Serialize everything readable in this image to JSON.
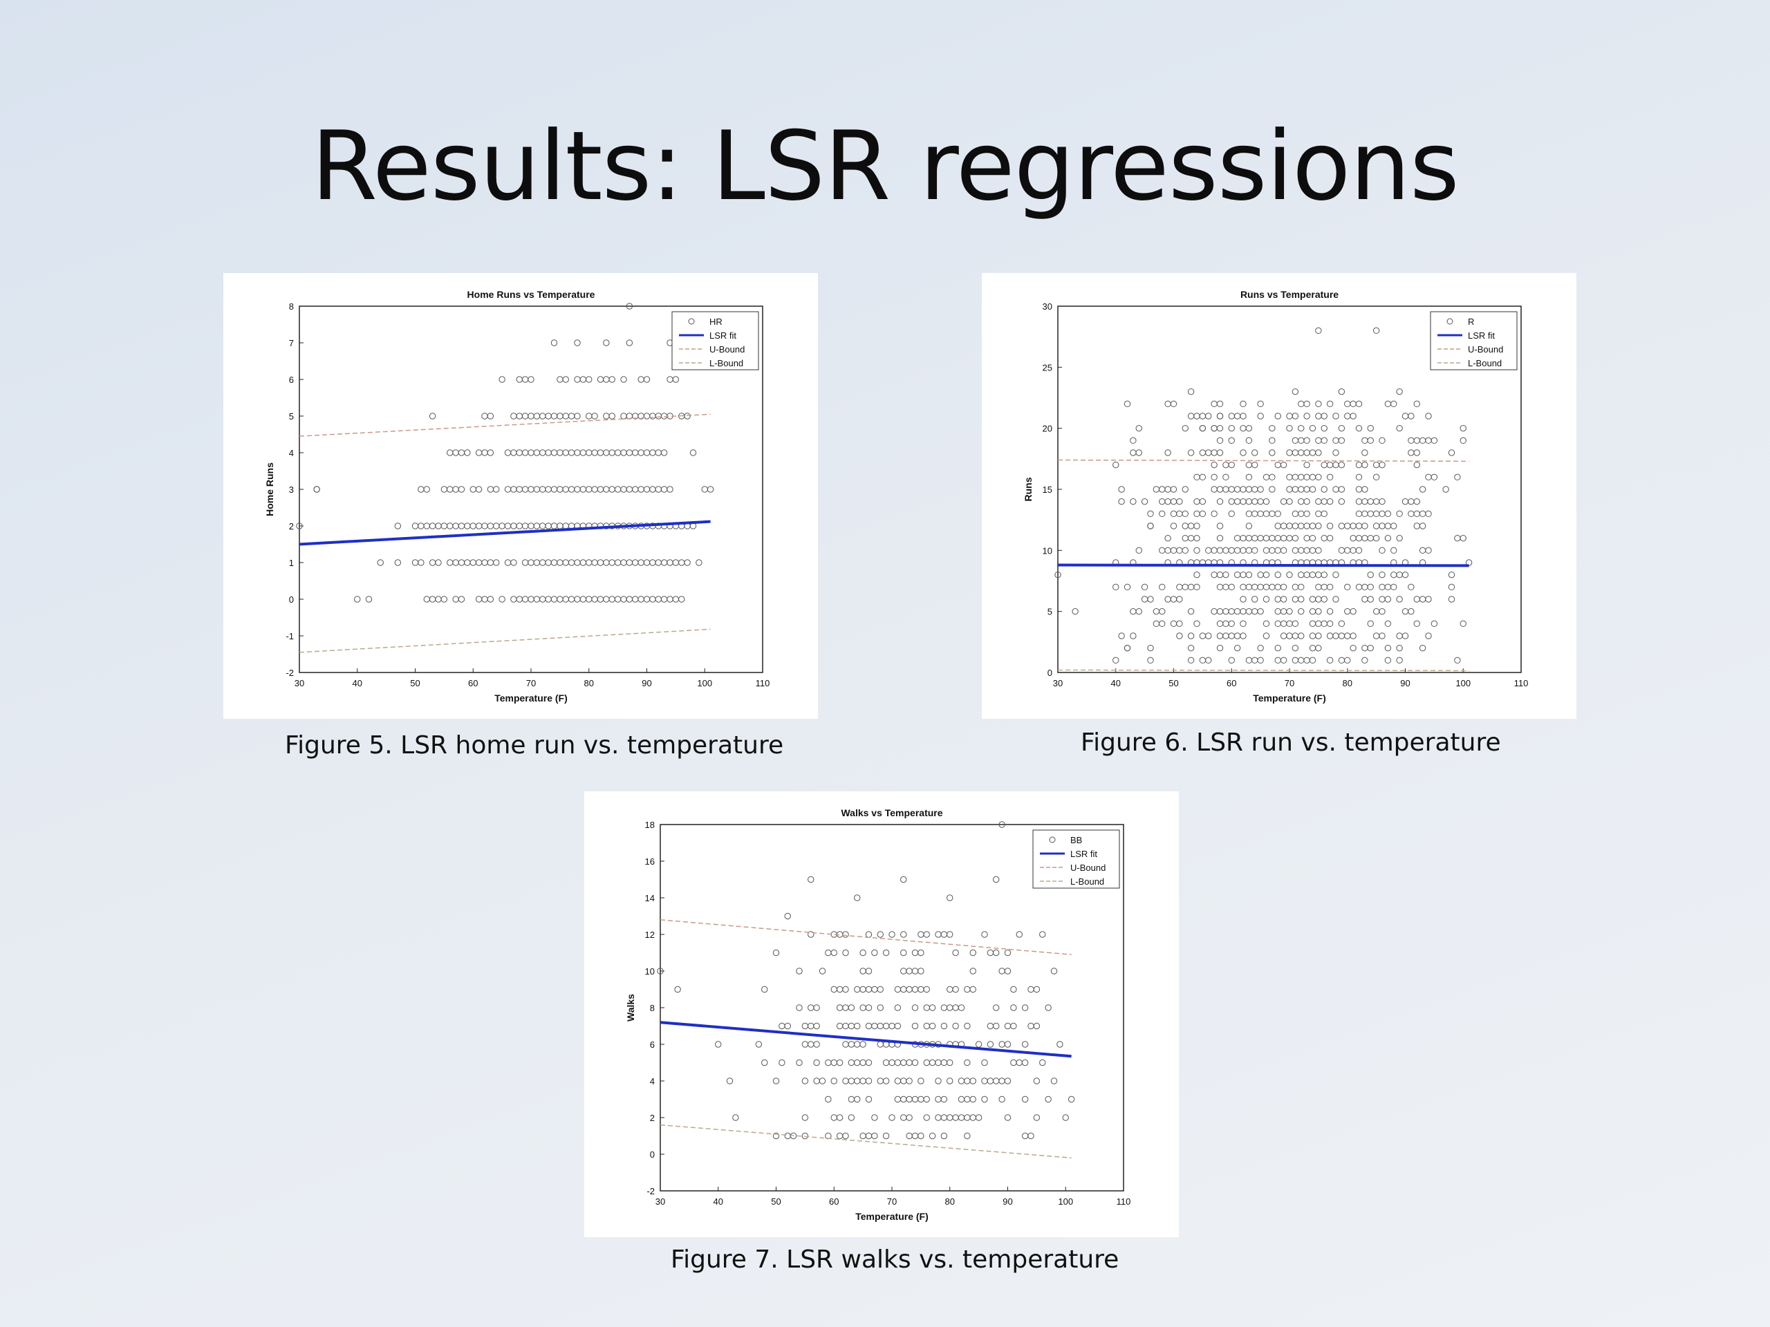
{
  "slide": {
    "title": "Results: LSR regressions"
  },
  "figures": [
    {
      "caption": "Figure 5. LSR home run vs. temperature"
    },
    {
      "caption": "Figure 6. LSR run vs. temperature"
    },
    {
      "caption": "Figure 7. LSR walks vs. temperature"
    }
  ],
  "chart_data": [
    {
      "type": "scatter",
      "title": "Home Runs vs Temperature",
      "xlabel": "Temperature (F)",
      "ylabel": "Home Runs",
      "xlim": [
        30,
        110
      ],
      "ylim": [
        -2,
        8
      ],
      "xticks": [
        30,
        40,
        50,
        60,
        70,
        80,
        90,
        100,
        110
      ],
      "yticks": [
        -2,
        -1,
        0,
        1,
        2,
        3,
        4,
        5,
        6,
        7,
        8
      ],
      "legend": {
        "placement": "top-right",
        "entries": [
          "HR",
          "LSR fit",
          "U-Bound",
          "L-Bound"
        ]
      },
      "scatter_name": "HR",
      "points_x": [
        30,
        33,
        40,
        42,
        52,
        53,
        54,
        55,
        57,
        58,
        61,
        62,
        63,
        65,
        67,
        68,
        69,
        70,
        71,
        72,
        73,
        74,
        75,
        76,
        77,
        78,
        79,
        80,
        81,
        82,
        83,
        84,
        85,
        86,
        87,
        88,
        89,
        90,
        91,
        92,
        93,
        94,
        95,
        96,
        44,
        47,
        50,
        51,
        53,
        54,
        56,
        57,
        58,
        59,
        60,
        61,
        62,
        63,
        64,
        66,
        67,
        69,
        70,
        71,
        72,
        73,
        74,
        75,
        76,
        77,
        78,
        79,
        80,
        81,
        82,
        83,
        84,
        85,
        86,
        87,
        88,
        89,
        90,
        91,
        92,
        93,
        94,
        95,
        96,
        97,
        99,
        47,
        50,
        51,
        52,
        53,
        54,
        55,
        56,
        57,
        58,
        59,
        60,
        61,
        62,
        63,
        64,
        65,
        66,
        67,
        68,
        69,
        70,
        71,
        72,
        73,
        74,
        75,
        76,
        77,
        78,
        79,
        80,
        81,
        82,
        83,
        84,
        85,
        86,
        87,
        88,
        89,
        90,
        91,
        92,
        93,
        94,
        95,
        96,
        97,
        98,
        33,
        51,
        52,
        55,
        56,
        57,
        58,
        60,
        61,
        63,
        64,
        66,
        67,
        68,
        69,
        70,
        71,
        72,
        73,
        74,
        75,
        76,
        77,
        78,
        79,
        80,
        81,
        82,
        83,
        84,
        85,
        86,
        87,
        88,
        89,
        90,
        91,
        92,
        93,
        94,
        100,
        101,
        56,
        57,
        58,
        59,
        61,
        62,
        63,
        66,
        67,
        68,
        69,
        70,
        71,
        72,
        73,
        74,
        75,
        76,
        77,
        78,
        79,
        80,
        81,
        82,
        83,
        84,
        85,
        86,
        87,
        88,
        89,
        90,
        91,
        92,
        93,
        98,
        53,
        62,
        63,
        67,
        68,
        69,
        70,
        71,
        72,
        73,
        74,
        75,
        76,
        77,
        78,
        80,
        81,
        83,
        84,
        86,
        87,
        88,
        89,
        90,
        91,
        92,
        93,
        94,
        96,
        97,
        65,
        68,
        69,
        70,
        75,
        76,
        78,
        79,
        80,
        82,
        83,
        84,
        86,
        89,
        90,
        94,
        95,
        74,
        78,
        83,
        87
      ],
      "points_y": [
        2,
        3,
        0,
        0,
        0,
        0,
        0,
        0,
        0,
        0,
        0,
        0,
        0,
        0,
        0,
        0,
        0,
        0,
        0,
        0,
        0,
        0,
        0,
        0,
        0,
        0,
        0,
        0,
        0,
        0,
        0,
        0,
        0,
        0,
        0,
        0,
        0,
        0,
        0,
        0,
        0,
        0,
        0,
        0,
        1,
        1,
        1,
        1,
        1,
        1,
        1,
        1,
        1,
        1,
        1,
        1,
        1,
        1,
        1,
        1,
        1,
        1,
        1,
        1,
        1,
        1,
        1,
        1,
        1,
        1,
        1,
        1,
        1,
        1,
        1,
        1,
        1,
        1,
        1,
        1,
        1,
        1,
        1,
        1,
        1,
        1,
        1,
        1,
        1,
        1,
        1,
        2,
        2,
        2,
        2,
        2,
        2,
        2,
        2,
        2,
        2,
        2,
        2,
        2,
        2,
        2,
        2,
        2,
        2,
        2,
        2,
        2,
        2,
        2,
        2,
        2,
        2,
        2,
        2,
        2,
        2,
        2,
        2,
        2,
        2,
        2,
        2,
        2,
        2,
        2,
        2,
        2,
        2,
        2,
        2,
        2,
        2,
        2,
        2,
        2,
        2,
        3,
        3,
        3,
        3,
        3,
        3,
        3,
        3,
        3,
        3,
        3,
        3,
        3,
        3,
        3,
        3,
        3,
        3,
        3,
        3,
        3,
        3,
        3,
        3,
        3,
        3,
        3,
        3,
        3,
        3,
        3,
        3,
        3,
        3,
        3,
        3,
        3,
        3,
        3,
        3,
        3,
        3,
        4,
        4,
        4,
        4,
        4,
        4,
        4,
        4,
        4,
        4,
        4,
        4,
        4,
        4,
        4,
        4,
        4,
        4,
        4,
        4,
        4,
        4,
        4,
        4,
        4,
        4,
        4,
        4,
        4,
        4,
        4,
        4,
        4,
        4,
        4,
        4,
        5,
        5,
        5,
        5,
        5,
        5,
        5,
        5,
        5,
        5,
        5,
        5,
        5,
        5,
        5,
        5,
        5,
        5,
        5,
        5,
        5,
        5,
        5,
        5,
        5,
        5,
        5,
        5,
        5,
        5,
        6,
        6,
        6,
        6,
        6,
        6,
        6,
        6,
        6,
        6,
        6,
        6,
        6,
        6,
        6,
        6,
        6,
        7,
        7,
        7,
        7
      ],
      "extra_points": [
        [
          87,
          8
        ],
        [
          94,
          7
        ]
      ],
      "fit": {
        "x": [
          30,
          101
        ],
        "y": [
          1.5,
          2.12
        ]
      },
      "upper": {
        "x": [
          30,
          101
        ],
        "y": [
          4.45,
          5.05
        ]
      },
      "lower": {
        "x": [
          30,
          101
        ],
        "y": [
          -1.45,
          -0.82
        ]
      }
    },
    {
      "type": "scatter",
      "title": "Runs vs Temperature",
      "xlabel": "Temperature (F)",
      "ylabel": "Runs",
      "xlim": [
        30,
        110
      ],
      "ylim": [
        0,
        30
      ],
      "xticks": [
        30,
        40,
        50,
        60,
        70,
        80,
        90,
        100,
        110
      ],
      "yticks": [
        0,
        5,
        10,
        15,
        20,
        25,
        30
      ],
      "legend": {
        "placement": "top-right",
        "entries": [
          "R",
          "LSR fit",
          "U-Bound",
          "L-Bound"
        ]
      },
      "scatter_name": "R",
      "generator": {
        "xmin": 40,
        "xmax": 100,
        "ymin": 1,
        "ymax": 22
      },
      "extra_points": [
        [
          30,
          8
        ],
        [
          33,
          5
        ],
        [
          40,
          1
        ],
        [
          42,
          2
        ],
        [
          43,
          3
        ],
        [
          46,
          12
        ],
        [
          53,
          23
        ],
        [
          55,
          20
        ],
        [
          57,
          20
        ],
        [
          58,
          21
        ],
        [
          60,
          20
        ],
        [
          75,
          28
        ],
        [
          85,
          28
        ],
        [
          71,
          23
        ],
        [
          79,
          23
        ],
        [
          81,
          22
        ],
        [
          88,
          22
        ],
        [
          89,
          23
        ],
        [
          101,
          9
        ],
        [
          100,
          4
        ]
      ],
      "fit": {
        "x": [
          30,
          101
        ],
        "y": [
          8.8,
          8.75
        ]
      },
      "upper": {
        "x": [
          30,
          101
        ],
        "y": [
          17.4,
          17.3
        ]
      },
      "lower": {
        "x": [
          30,
          101
        ],
        "y": [
          0.2,
          0.15
        ]
      }
    },
    {
      "type": "scatter",
      "title": "Walks vs Temperature",
      "xlabel": "Temperature (F)",
      "ylabel": "Walks",
      "xlim": [
        30,
        110
      ],
      "ylim": [
        -2,
        18
      ],
      "xticks": [
        30,
        40,
        50,
        60,
        70,
        80,
        90,
        100,
        110
      ],
      "yticks": [
        -2,
        0,
        2,
        4,
        6,
        8,
        10,
        12,
        14,
        16,
        18
      ],
      "legend": {
        "placement": "top-right",
        "entries": [
          "BB",
          "LSR fit",
          "U-Bound",
          "L-Bound"
        ]
      },
      "scatter_name": "BB",
      "generator": {
        "xmin": 48,
        "xmax": 99,
        "ymin": 1,
        "ymax": 12
      },
      "extra_points": [
        [
          30,
          10
        ],
        [
          33,
          9
        ],
        [
          40,
          6
        ],
        [
          42,
          4
        ],
        [
          43,
          2
        ],
        [
          47,
          6
        ],
        [
          52,
          13
        ],
        [
          56,
          15
        ],
        [
          72,
          15
        ],
        [
          88,
          15
        ],
        [
          89,
          18
        ],
        [
          101,
          3
        ],
        [
          100,
          2
        ],
        [
          64,
          14
        ],
        [
          80,
          14
        ]
      ],
      "fit": {
        "x": [
          30,
          101
        ],
        "y": [
          7.2,
          5.35
        ]
      },
      "upper": {
        "x": [
          30,
          101
        ],
        "y": [
          12.8,
          10.9
        ]
      },
      "lower": {
        "x": [
          30,
          101
        ],
        "y": [
          1.6,
          -0.2
        ]
      }
    }
  ]
}
